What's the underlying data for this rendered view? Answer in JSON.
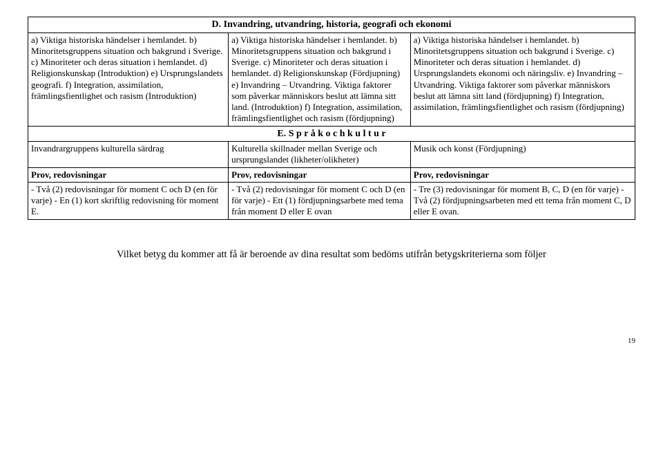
{
  "sectionD": {
    "title": "D. Invandring, utvandring, historia, geografi och ekonomi",
    "col1": "a) Viktiga historiska händelser i hemlandet.\nb) Minoritetsgruppens situation och bakgrund  i Sverige.\nc) Minoriteter och deras situation i hemlandet.\nd) Religionskunskap (Introduktion)\ne) Ursprungslandets geografi.\nf) Integration, assimilation, främlingsfientlighet och rasism (Introduktion)",
    "col2": "a) Viktiga historiska händelser i hemlandet.\nb) Minoritetsgruppens situation och bakgrund  i Sverige.\nc) Minoriteter och deras situation i hemlandet.\nd) Religionskunskap (Fördjupning)\ne) Invandring – Utvandring. Viktiga faktorer som påverkar människors beslut att lämna sitt land. (Introduktion)\nf) Integration, assimilation, främlingsfientlighet och rasism (fördjupning)",
    "col3": "a) Viktiga historiska händelser i hemlandet.\nb) Minoritetsgruppens situation och bakgrund  i Sverige.\nc) Minoriteter och deras situation i hemlandet.\nd) Ursprungslandets ekonomi och näringsliv.\ne) Invandring – Utvandring. Viktiga faktorer som påverkar människors beslut att lämna sitt land (fördjupning)\nf) Integration, assimilation, främlingsfientlighet och rasism (fördjupning)"
  },
  "sectionE": {
    "title": "E. S p r å k   o c h   k u l t u r",
    "col1": "Invandrargruppens kulturella särdrag",
    "col2": "Kulturella skillnader mellan Sverige och ursprungslandet (likheter/olikheter)",
    "col3": "Musik och konst (Fördjupning)"
  },
  "prov": {
    "header": "Prov, redovisningar",
    "col1": "- Två (2) redovisningar för moment C och D  (en för varje)\n- En (1) kort skriftlig redovisning för moment E.",
    "col2": "- Två (2) redovisningar för moment C och D (en för varje)\n- Ett (1) fördjupningsarbete med tema från moment D eller E ovan",
    "col3": "- Tre (3) redovisningar för moment B, C, D (en för varje)\n- Två (2) fördjupningsarbeten med ett tema från moment C, D eller E ovan."
  },
  "footer": "Vilket betyg du kommer att få är beroende av dina resultat som bedöms utifrån betygskriterierna som följer",
  "pageNumber": "19"
}
